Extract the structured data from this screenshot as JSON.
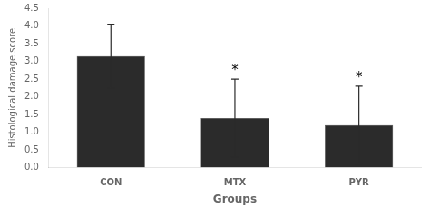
{
  "chart_data": {
    "type": "bar",
    "categories": [
      "CON",
      "MTX",
      "PYR"
    ],
    "values": [
      3.15,
      1.4,
      1.2
    ],
    "errors": [
      0.9,
      1.1,
      1.1
    ],
    "color": "#2b2b2b",
    "xlabel": "Groups",
    "ylabel": "Histological damage score",
    "ylim": [
      0,
      4.5
    ],
    "yticks": [
      {
        "value": 0,
        "label": "0.0"
      },
      0.5,
      {
        "value": 1.0,
        "label": "1.0"
      },
      1.5,
      {
        "value": 2.0,
        "label": "2.0"
      },
      2.5,
      {
        "value": 3.0,
        "label": "3.0"
      },
      3.5,
      {
        "value": 4.0,
        "label": "4.0"
      },
      4.5
    ],
    "annotations": [
      {
        "category": "MTX",
        "text": "*"
      },
      {
        "category": "PYR",
        "text": "*"
      }
    ],
    "grid": false
  }
}
